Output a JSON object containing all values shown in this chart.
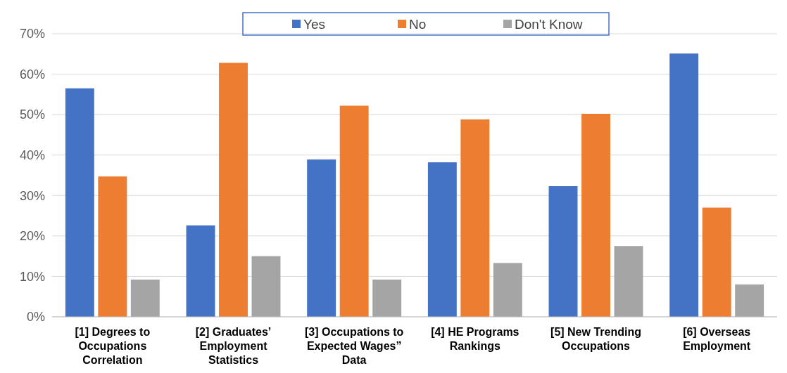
{
  "chart_data": {
    "type": "bar",
    "categories": [
      "[1] Degrees to Occupations Correlation",
      "[2] Graduates’ Employment Statistics",
      "[3] Occupations to Expected Wages” Data",
      "[4] HE Programs Rankings",
      "[5] New Trending Occupations",
      "[6] Overseas Employment"
    ],
    "series": [
      {
        "name": "Yes",
        "color": "#4472c4",
        "values": [
          56.5,
          22.6,
          38.9,
          38.2,
          32.3,
          65.1
        ]
      },
      {
        "name": "No",
        "color": "#ed7d31",
        "values": [
          34.7,
          62.8,
          52.2,
          48.8,
          50.2,
          27.0
        ]
      },
      {
        "name": "Don't Know",
        "color": "#a5a5a5",
        "values": [
          9.2,
          15.0,
          9.2,
          13.3,
          17.5,
          8.0
        ]
      }
    ],
    "ylim": [
      0,
      70
    ],
    "yticks": [
      {
        "value": 0,
        "label": "0%"
      },
      {
        "value": 10,
        "label": "10%"
      },
      {
        "value": 20,
        "label": "20%"
      },
      {
        "value": 30,
        "label": "30%"
      },
      {
        "value": 40,
        "label": "40%"
      },
      {
        "value": 50,
        "label": "50%"
      },
      {
        "value": 60,
        "label": "60%"
      },
      {
        "value": 70,
        "label": "70%"
      }
    ],
    "grid": "y",
    "legend": "top"
  }
}
